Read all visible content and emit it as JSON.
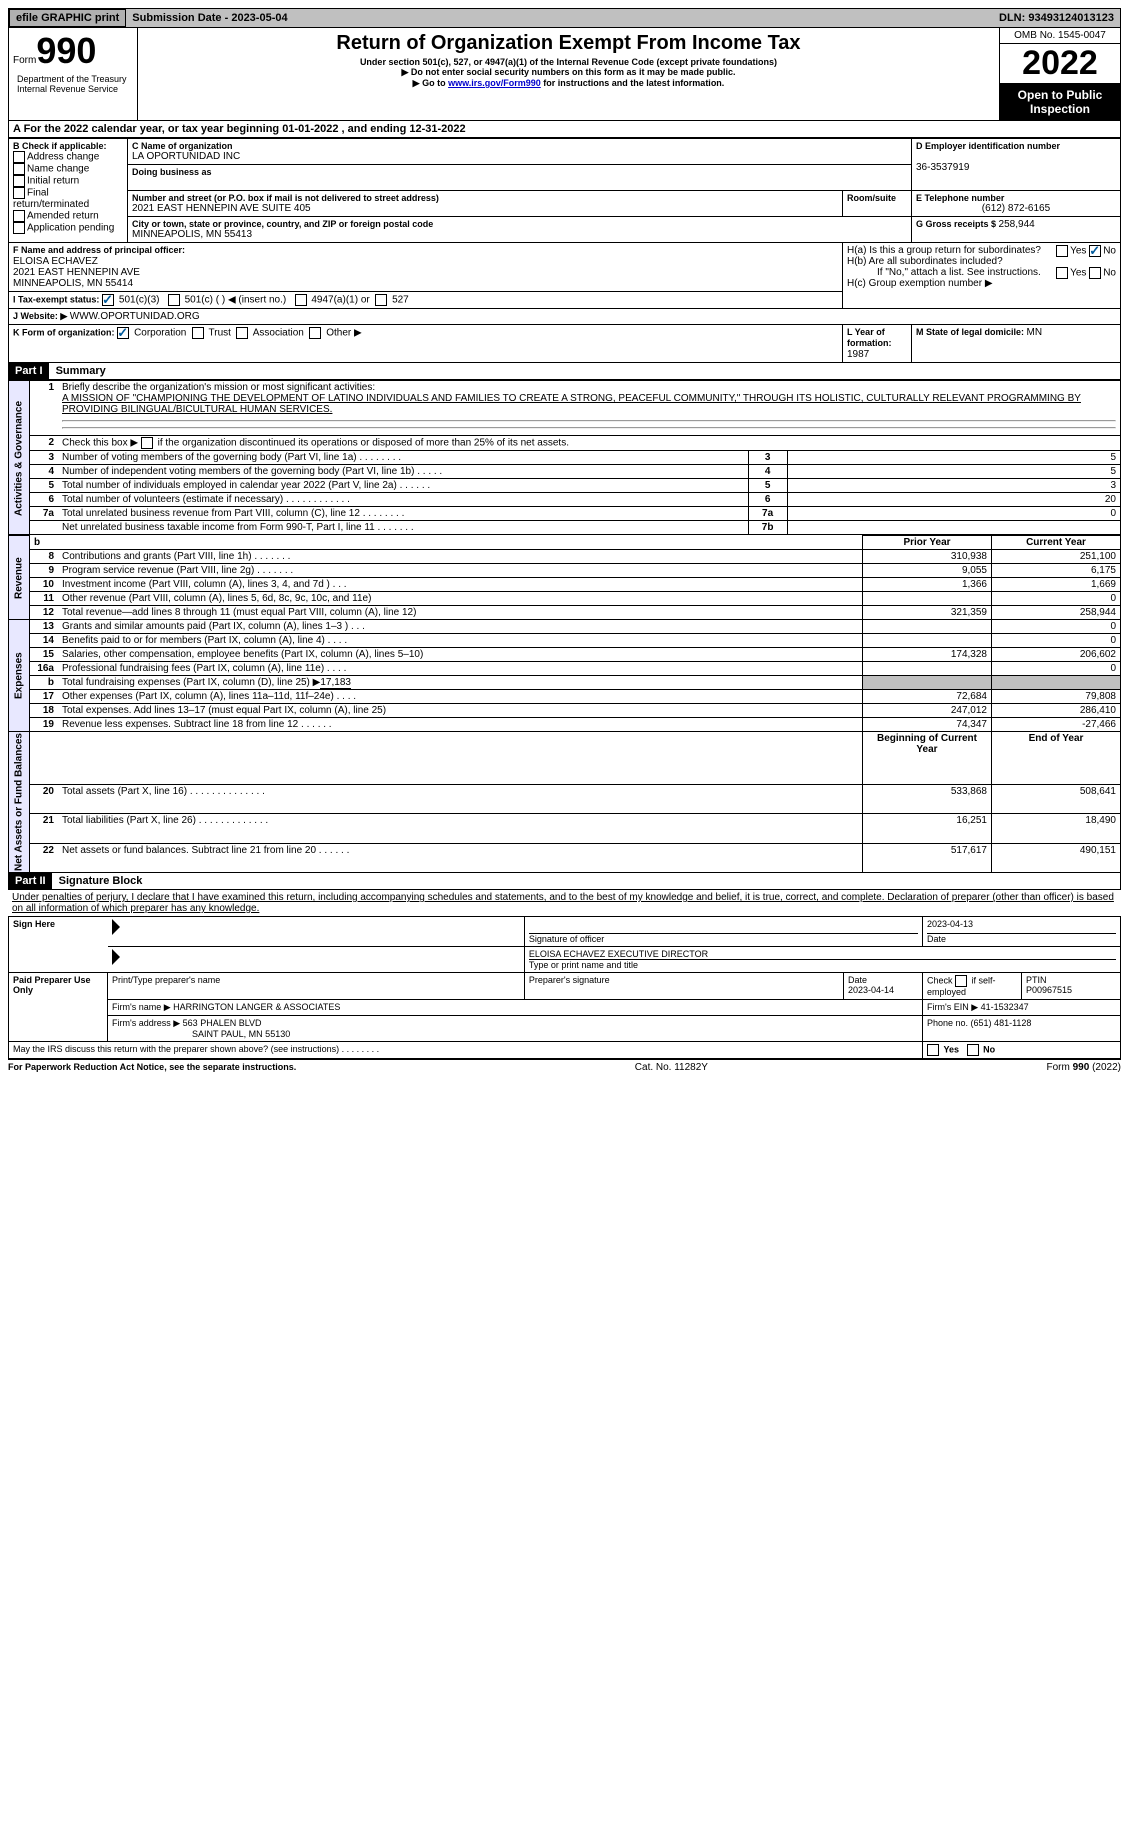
{
  "topbar": {
    "efile": "efile GRAPHIC print",
    "subdate_label": "Submission Date - ",
    "subdate": "2023-05-04",
    "dln_label": "DLN: ",
    "dln": "93493124013123"
  },
  "header": {
    "form_word": "Form",
    "form_num": "990",
    "dept": "Department of the Treasury\nInternal Revenue Service",
    "title": "Return of Organization Exempt From Income Tax",
    "subtitle": "Under section 501(c), 527, or 4947(a)(1) of the Internal Revenue Code (except private foundations)",
    "note1": "Do not enter social security numbers on this form as it may be made public.",
    "note2_pre": "Go to ",
    "note2_link": "www.irs.gov/Form990",
    "note2_post": " for instructions and the latest information.",
    "omb": "OMB No. 1545-0047",
    "year": "2022",
    "inspect": "Open to Public Inspection"
  },
  "lineA": "A For the 2022 calendar year, or tax year beginning 01-01-2022    , and ending 12-31-2022",
  "boxB": {
    "label": "B Check if applicable:",
    "items": [
      "Address change",
      "Name change",
      "Initial return",
      "Final return/terminated",
      "Amended return",
      "Application pending"
    ]
  },
  "boxC": {
    "label_name": "C Name of organization",
    "name": "LA OPORTUNIDAD INC",
    "dba": "Doing business as",
    "street_label": "Number and street (or P.O. box if mail is not delivered to street address)",
    "room_label": "Room/suite",
    "street": "2021 EAST HENNEPIN AVE SUITE 405",
    "city_label": "City or town, state or province, country, and ZIP or foreign postal code",
    "city": "MINNEAPOLIS, MN  55413"
  },
  "boxD": {
    "label": "D Employer identification number",
    "value": "36-3537919"
  },
  "boxE": {
    "label": "E Telephone number",
    "value": "(612) 872-6165"
  },
  "boxG": {
    "label": "G Gross receipts $ ",
    "value": "258,944"
  },
  "boxF": {
    "label": "F Name and address of principal officer:",
    "name": "ELOISA ECHAVEZ",
    "addr1": "2021 EAST HENNEPIN AVE",
    "addr2": "MINNEAPOLIS, MN  55414"
  },
  "boxH": {
    "ha": "H(a)  Is this a group return for subordinates?",
    "hb": "H(b)  Are all subordinates included?",
    "hb_note": "If \"No,\" attach a list. See instructions.",
    "hc": "H(c)  Group exemption number ▶",
    "yes": "Yes",
    "no": "No"
  },
  "boxI": {
    "label": "I    Tax-exempt status:",
    "c3": "501(c)(3)",
    "c": "501(c) (  ) ◀ (insert no.)",
    "a1": "4947(a)(1) or",
    "s527": "527"
  },
  "boxJ": {
    "label": "J   Website: ▶ ",
    "value": "WWW.OPORTUNIDAD.ORG"
  },
  "boxK": {
    "label": "K Form of organization:",
    "corp": "Corporation",
    "trust": "Trust",
    "assoc": "Association",
    "other": "Other ▶"
  },
  "boxL": {
    "label": "L Year of formation: ",
    "value": "1987"
  },
  "boxM": {
    "label": "M State of legal domicile: ",
    "value": "MN"
  },
  "part1": {
    "tag": "Part I",
    "title": "Summary"
  },
  "side": {
    "ag": "Activities & Governance",
    "rev": "Revenue",
    "exp": "Expenses",
    "net": "Net Assets or Fund Balances"
  },
  "summary": {
    "q1": "Briefly describe the organization's mission or most significant activities:",
    "mission": "A MISSION OF \"CHAMPIONING THE DEVELOPMENT OF LATINO INDIVIDUALS AND FAMILIES TO CREATE A STRONG, PEACEFUL COMMUNITY,\" THROUGH ITS HOLISTIC, CULTURALLY RELEVANT PROGRAMMING BY PROVIDING BILINGUAL/BICULTURAL HUMAN SERVICES.",
    "q2": "Check this box ▶        if the organization discontinued its operations or disposed of more than 25% of its net assets.",
    "rows_gov": [
      {
        "n": "3",
        "t": "Number of voting members of the governing body (Part VI, line 1a)   .   .   .   .   .   .   .   .",
        "l": "3",
        "v": "5"
      },
      {
        "n": "4",
        "t": "Number of independent voting members of the governing body (Part VI, line 1b)   .   .   .   .   .",
        "l": "4",
        "v": "5"
      },
      {
        "n": "5",
        "t": "Total number of individuals employed in calendar year 2022 (Part V, line 2a)   .   .   .   .   .   .",
        "l": "5",
        "v": "3"
      },
      {
        "n": "6",
        "t": "Total number of volunteers (estimate if necessary)    .   .   .   .   .   .   .   .   .   .   .   .",
        "l": "6",
        "v": "20"
      },
      {
        "n": "7a",
        "t": "Total unrelated business revenue from Part VIII, column (C), line 12   .   .   .   .   .   .   .   .",
        "l": "7a",
        "v": "0"
      },
      {
        "n": "",
        "t": "Net unrelated business taxable income from Form 990-T, Part I, line 11   .   .   .   .   .   .   .",
        "l": "7b",
        "v": ""
      }
    ],
    "prior": "Prior Year",
    "current": "Current Year",
    "revb": "b",
    "rows_rev": [
      {
        "n": "8",
        "t": "Contributions and grants (Part VIII, line 1h)    .    .    .    .    .    .    .",
        "p": "310,938",
        "c": "251,100"
      },
      {
        "n": "9",
        "t": "Program service revenue (Part VIII, line 2g)    .    .    .    .    .    .    .",
        "p": "9,055",
        "c": "6,175"
      },
      {
        "n": "10",
        "t": "Investment income (Part VIII, column (A), lines 3, 4, and 7d )    .    .    .",
        "p": "1,366",
        "c": "1,669"
      },
      {
        "n": "11",
        "t": "Other revenue (Part VIII, column (A), lines 5, 6d, 8c, 9c, 10c, and 11e)",
        "p": "",
        "c": "0"
      },
      {
        "n": "12",
        "t": "Total revenue—add lines 8 through 11 (must equal Part VIII, column (A), line 12)",
        "p": "321,359",
        "c": "258,944"
      }
    ],
    "rows_exp": [
      {
        "n": "13",
        "t": "Grants and similar amounts paid (Part IX, column (A), lines 1–3 )   .   .   .",
        "p": "",
        "c": "0"
      },
      {
        "n": "14",
        "t": "Benefits paid to or for members (Part IX, column (A), line 4)   .   .   .   .",
        "p": "",
        "c": "0"
      },
      {
        "n": "15",
        "t": "Salaries, other compensation, employee benefits (Part IX, column (A), lines 5–10)",
        "p": "174,328",
        "c": "206,602"
      },
      {
        "n": "16a",
        "t": "Professional fundraising fees (Part IX, column (A), line 11e)   .   .   .   .",
        "p": "",
        "c": "0"
      }
    ],
    "row_16b": {
      "n": "b",
      "t": "Total fundraising expenses (Part IX, column (D), line 25) ▶",
      "v": "17,183"
    },
    "rows_exp2": [
      {
        "n": "17",
        "t": "Other expenses (Part IX, column (A), lines 11a–11d, 11f–24e)   .   .   .   .",
        "p": "72,684",
        "c": "79,808"
      },
      {
        "n": "18",
        "t": "Total expenses. Add lines 13–17 (must equal Part IX, column (A), line 25)",
        "p": "247,012",
        "c": "286,410"
      },
      {
        "n": "19",
        "t": "Revenue less expenses. Subtract line 18 from line 12   .   .   .   .   .   .",
        "p": "74,347",
        "c": "-27,466"
      }
    ],
    "begin": "Beginning of Current Year",
    "end": "End of Year",
    "rows_net": [
      {
        "n": "20",
        "t": "Total assets (Part X, line 16)   .   .   .   .   .   .   .   .   .   .   .   .   .   .",
        "p": "533,868",
        "c": "508,641"
      },
      {
        "n": "21",
        "t": "Total liabilities (Part X, line 26)   .   .   .   .   .   .   .   .   .   .   .   .   .",
        "p": "16,251",
        "c": "18,490"
      },
      {
        "n": "22",
        "t": "Net assets or fund balances. Subtract line 21 from line 20   .   .   .   .   .   .",
        "p": "517,617",
        "c": "490,151"
      }
    ]
  },
  "part2": {
    "tag": "Part II",
    "title": "Signature Block"
  },
  "penalty": "Under penalties of perjury, I declare that I have examined this return, including accompanying schedules and statements, and to the best of my knowledge and belief, it is true, correct, and complete. Declaration of preparer (other than officer) is based on all information of which preparer has any knowledge.",
  "sign": {
    "here": "Sign Here",
    "sigoff": "Signature of officer",
    "date": "Date",
    "sigdate": "2023-04-13",
    "typed": "ELOISA ECHAVEZ  EXECUTIVE DIRECTOR",
    "typelabel": "Type or print name and title"
  },
  "paid": {
    "here": "Paid Preparer Use Only",
    "printname": "Print/Type preparer's name",
    "sig": "Preparer's signature",
    "date_l": "Date",
    "date": "2023-04-14",
    "check_l": "Check         if self-employed",
    "ptin_l": "PTIN",
    "ptin": "P00967515",
    "firm_l": "Firm's name     ▶",
    "firm": "HARRINGTON LANGER & ASSOCIATES",
    "ein_l": "Firm's EIN ▶ ",
    "ein": "41-1532347",
    "addr_l": "Firm's address ▶",
    "addr1": "563 PHALEN BLVD",
    "addr2": "SAINT PAUL, MN  55130",
    "phone_l": "Phone no. ",
    "phone": "(651) 481-1128"
  },
  "discuss": "May the IRS discuss this return with the preparer shown above? (see instructions)    .    .    .    .    .    .    .    .",
  "footer": {
    "pra": "For Paperwork Reduction Act Notice, see the separate instructions.",
    "cat": "Cat. No. 11282Y",
    "form": "Form 990 (2022)"
  }
}
